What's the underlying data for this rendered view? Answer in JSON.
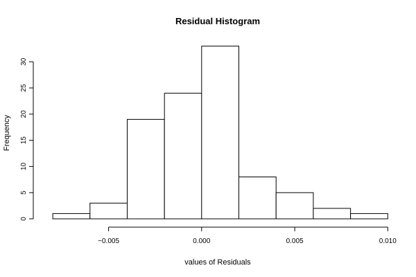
{
  "chart_data": {
    "type": "bar",
    "title": "Residual Histogram",
    "xlabel": "values of Residuals",
    "ylabel": "Frequency",
    "bins": [
      {
        "from": -0.008,
        "to": -0.006,
        "count": 1
      },
      {
        "from": -0.006,
        "to": -0.004,
        "count": 3
      },
      {
        "from": -0.004,
        "to": -0.002,
        "count": 19
      },
      {
        "from": -0.002,
        "to": 0.0,
        "count": 24
      },
      {
        "from": 0.0,
        "to": 0.002,
        "count": 33
      },
      {
        "from": 0.002,
        "to": 0.004,
        "count": 8
      },
      {
        "from": 0.004,
        "to": 0.006,
        "count": 5
      },
      {
        "from": 0.006,
        "to": 0.008,
        "count": 2
      },
      {
        "from": 0.008,
        "to": 0.01,
        "count": 1
      }
    ],
    "xticks": [
      {
        "value": -0.005,
        "label": "−0.005"
      },
      {
        "value": 0.0,
        "label": "0.000"
      },
      {
        "value": 0.005,
        "label": "0.005"
      },
      {
        "value": 0.01,
        "label": "0.010"
      }
    ],
    "yticks": [
      {
        "value": 0,
        "label": "0"
      },
      {
        "value": 5,
        "label": "5"
      },
      {
        "value": 10,
        "label": "10"
      },
      {
        "value": 15,
        "label": "15"
      },
      {
        "value": 20,
        "label": "20"
      },
      {
        "value": 25,
        "label": "25"
      },
      {
        "value": 30,
        "label": "30"
      }
    ],
    "xlim": [
      -0.0086,
      0.0104
    ],
    "ylim": [
      0,
      34
    ],
    "grid": false
  }
}
